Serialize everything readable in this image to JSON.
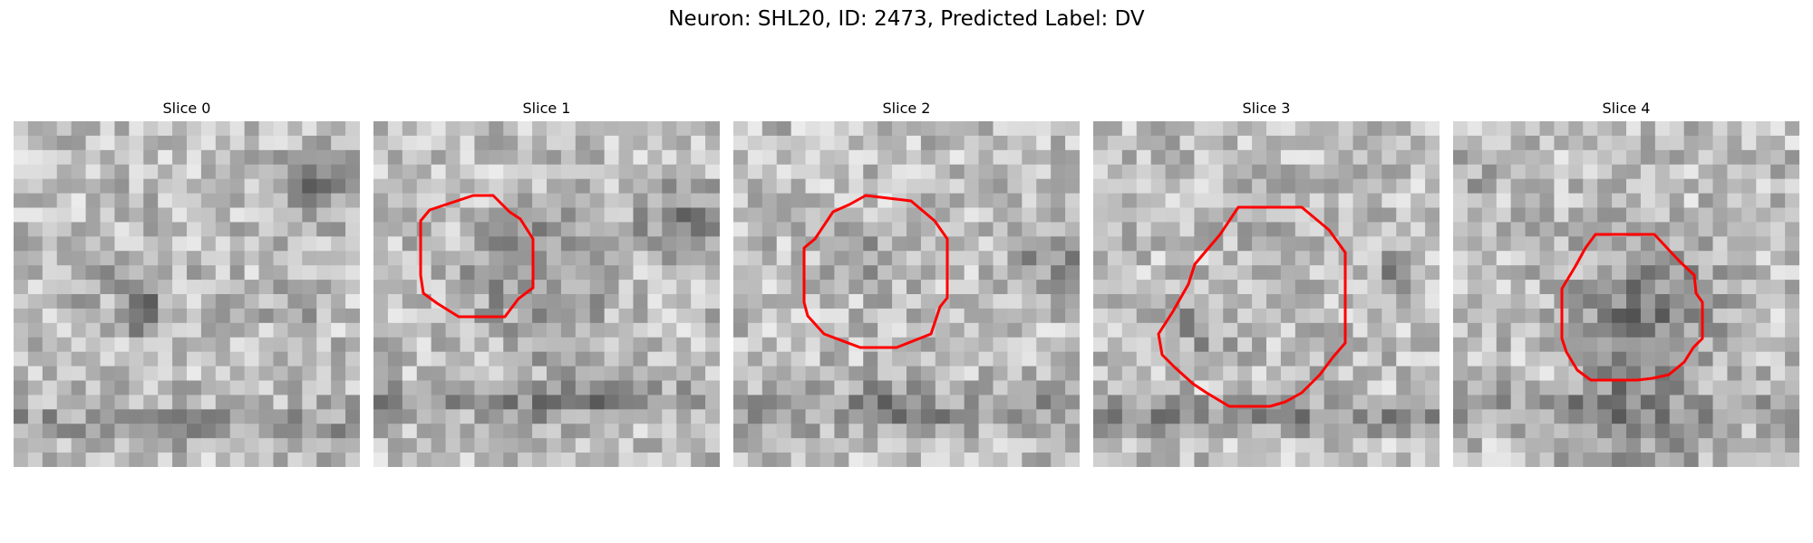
{
  "figure": {
    "title": "Neuron: SHL20, ID: 2473, Predicted Label: DV"
  },
  "contour_color": "#ff0000",
  "colormap": "grayscale",
  "panels": [
    {
      "title": "Slice 0",
      "has_contour": false,
      "seed": 11
    },
    {
      "title": "Slice 1",
      "has_contour": true,
      "seed": 23
    },
    {
      "title": "Slice 2",
      "has_contour": true,
      "seed": 37
    },
    {
      "title": "Slice 3",
      "has_contour": true,
      "seed": 51
    },
    {
      "title": "Slice 4",
      "has_contour": true,
      "seed": 67
    }
  ]
}
